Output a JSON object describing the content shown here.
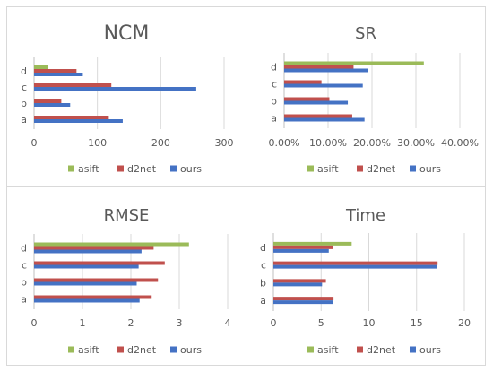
{
  "chart_data": [
    {
      "type": "bar",
      "orientation": "horizontal",
      "title": "NCM",
      "categories": [
        "a",
        "b",
        "c",
        "d"
      ],
      "xlim": [
        0,
        300
      ],
      "xticks": [
        0,
        100,
        200,
        300
      ],
      "xtick_labels": [
        "0",
        "100",
        "200",
        "300"
      ],
      "series": [
        {
          "name": "ours",
          "color": "#4472c4",
          "values": [
            140,
            57,
            256,
            77
          ]
        },
        {
          "name": "d2net",
          "color": "#c0504d",
          "values": [
            118,
            43,
            122,
            67
          ]
        },
        {
          "name": "asift",
          "color": "#9bbb59",
          "values": [
            null,
            null,
            null,
            22
          ]
        }
      ],
      "legend_position": "bottom"
    },
    {
      "type": "bar",
      "orientation": "horizontal",
      "title": "SR",
      "categories": [
        "a",
        "b",
        "c",
        "d"
      ],
      "xlim": [
        0,
        0.4
      ],
      "xticks": [
        0,
        0.1,
        0.2,
        0.3,
        0.4
      ],
      "xtick_labels": [
        "0.00%",
        "10.00%",
        "20.00%",
        "30.00%",
        "40.00%"
      ],
      "series": [
        {
          "name": "ours",
          "color": "#4472c4",
          "values": [
            0.183,
            0.145,
            0.179,
            0.19
          ]
        },
        {
          "name": "d2net",
          "color": "#c0504d",
          "values": [
            0.155,
            0.103,
            0.085,
            0.158
          ]
        },
        {
          "name": "asift",
          "color": "#9bbb59",
          "values": [
            null,
            null,
            null,
            0.318
          ]
        }
      ],
      "legend_position": "bottom"
    },
    {
      "type": "bar",
      "orientation": "horizontal",
      "title": "RMSE",
      "categories": [
        "a",
        "b",
        "c",
        "d"
      ],
      "xlim": [
        0,
        4
      ],
      "xticks": [
        0,
        1,
        2,
        3,
        4
      ],
      "xtick_labels": [
        "0",
        "1",
        "2",
        "3",
        "4"
      ],
      "series": [
        {
          "name": "ours",
          "color": "#4472c4",
          "values": [
            2.18,
            2.12,
            2.16,
            2.22
          ]
        },
        {
          "name": "d2net",
          "color": "#c0504d",
          "values": [
            2.43,
            2.56,
            2.7,
            2.47
          ]
        },
        {
          "name": "asift",
          "color": "#9bbb59",
          "values": [
            null,
            null,
            null,
            3.2
          ]
        }
      ],
      "legend_position": "bottom"
    },
    {
      "type": "bar",
      "orientation": "horizontal",
      "title": "Time",
      "categories": [
        "a",
        "b",
        "c",
        "d"
      ],
      "xlim": [
        0,
        20
      ],
      "xticks": [
        0,
        5,
        10,
        15,
        20
      ],
      "xtick_labels": [
        "0",
        "5",
        "10",
        "15",
        "20"
      ],
      "series": [
        {
          "name": "ours",
          "color": "#4472c4",
          "values": [
            6.2,
            5.1,
            17.1,
            5.8
          ]
        },
        {
          "name": "d2net",
          "color": "#c0504d",
          "values": [
            6.3,
            5.5,
            17.2,
            6.2
          ]
        },
        {
          "name": "asift",
          "color": "#9bbb59",
          "values": [
            null,
            null,
            null,
            8.2
          ]
        }
      ],
      "legend_position": "bottom"
    }
  ],
  "legend_order": [
    "asift",
    "d2net",
    "ours"
  ]
}
